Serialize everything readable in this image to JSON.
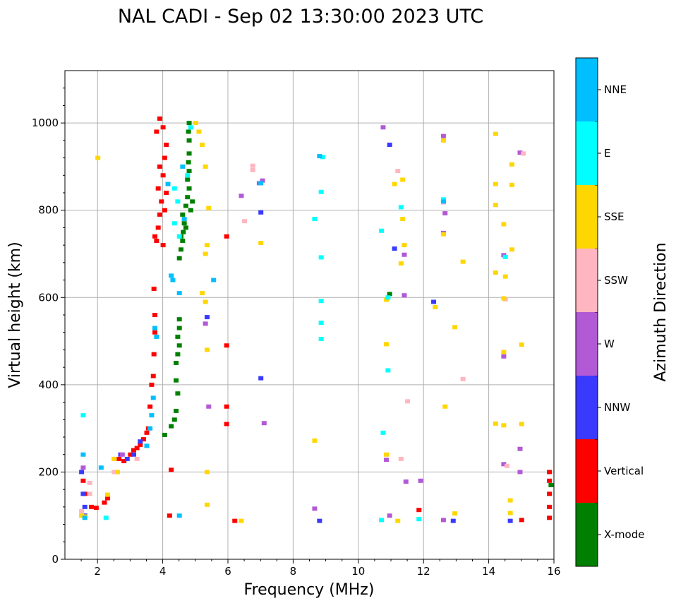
{
  "chart_data": {
    "type": "scatter",
    "title": "NAL CADI - Sep 02 13:30:00 2023 UTC",
    "xlabel": "Frequency (MHz)",
    "ylabel": "Virtual height (km)",
    "xlim": [
      1,
      16
    ],
    "ylim": [
      0,
      1120
    ],
    "xticks": [
      2,
      4,
      6,
      8,
      10,
      12,
      14,
      16
    ],
    "yticks": [
      0,
      200,
      400,
      600,
      800,
      1000
    ],
    "grid": true,
    "colorbar": {
      "label": "Azimuth Direction",
      "categories": [
        {
          "name": "X-mode",
          "color": "#008000"
        },
        {
          "name": "Vertical",
          "color": "#ff0000"
        },
        {
          "name": "NNW",
          "color": "#3a3aff"
        },
        {
          "name": "W",
          "color": "#b259d6"
        },
        {
          "name": "SSW",
          "color": "#ffb6c1"
        },
        {
          "name": "SSE",
          "color": "#ffd700"
        },
        {
          "name": "E",
          "color": "#00ffff"
        },
        {
          "name": "NNE",
          "color": "#00bfff"
        }
      ]
    },
    "series": [
      {
        "name": "X-mode",
        "color": "#008000",
        "points": [
          [
            4.05,
            285
          ],
          [
            4.25,
            305
          ],
          [
            4.35,
            320
          ],
          [
            4.4,
            340
          ],
          [
            4.45,
            380
          ],
          [
            4.4,
            410
          ],
          [
            4.4,
            450
          ],
          [
            4.45,
            470
          ],
          [
            4.5,
            490
          ],
          [
            4.45,
            510
          ],
          [
            4.5,
            530
          ],
          [
            4.5,
            550
          ],
          [
            4.5,
            690
          ],
          [
            4.55,
            710
          ],
          [
            4.6,
            730
          ],
          [
            4.62,
            750
          ],
          [
            4.65,
            770
          ],
          [
            4.6,
            790
          ],
          [
            4.7,
            810
          ],
          [
            4.75,
            830
          ],
          [
            4.8,
            850
          ],
          [
            4.75,
            870
          ],
          [
            4.8,
            890
          ],
          [
            4.78,
            910
          ],
          [
            4.8,
            930
          ],
          [
            4.8,
            960
          ],
          [
            4.78,
            980
          ],
          [
            4.8,
            1000
          ],
          [
            4.7,
            760
          ],
          [
            4.55,
            740
          ],
          [
            4.85,
            800
          ],
          [
            4.9,
            820
          ],
          [
            10.95,
            608
          ],
          [
            15.9,
            170
          ]
        ]
      },
      {
        "name": "Vertical",
        "color": "#ff0000",
        "points": [
          [
            1.55,
            180
          ],
          [
            1.6,
            150
          ],
          [
            1.8,
            120
          ],
          [
            1.95,
            118
          ],
          [
            2.2,
            130
          ],
          [
            2.3,
            140
          ],
          [
            2.65,
            230
          ],
          [
            2.8,
            225
          ],
          [
            3.0,
            240
          ],
          [
            3.1,
            250
          ],
          [
            3.2,
            255
          ],
          [
            3.3,
            262
          ],
          [
            3.4,
            275
          ],
          [
            3.5,
            290
          ],
          [
            3.55,
            300
          ],
          [
            3.6,
            350
          ],
          [
            3.65,
            400
          ],
          [
            3.7,
            420
          ],
          [
            3.72,
            470
          ],
          [
            3.75,
            520
          ],
          [
            3.75,
            560
          ],
          [
            3.72,
            620
          ],
          [
            3.8,
            730
          ],
          [
            3.85,
            760
          ],
          [
            3.9,
            790
          ],
          [
            3.95,
            820
          ],
          [
            3.85,
            850
          ],
          [
            4.0,
            880
          ],
          [
            3.9,
            900
          ],
          [
            4.05,
            920
          ],
          [
            4.1,
            950
          ],
          [
            3.8,
            980
          ],
          [
            4.0,
            990
          ],
          [
            3.9,
            1010
          ],
          [
            4.1,
            840
          ],
          [
            4.05,
            800
          ],
          [
            4.2,
            100
          ],
          [
            4.25,
            205
          ],
          [
            3.75,
            740
          ],
          [
            4.0,
            720
          ],
          [
            5.95,
            740
          ],
          [
            5.95,
            490
          ],
          [
            5.95,
            350
          ],
          [
            5.95,
            310
          ],
          [
            6.2,
            88
          ],
          [
            11.85,
            113
          ],
          [
            15.0,
            90
          ],
          [
            15.85,
            150
          ],
          [
            15.85,
            120
          ],
          [
            15.85,
            180
          ],
          [
            15.85,
            200
          ],
          [
            15.85,
            95
          ]
        ]
      },
      {
        "name": "NNW",
        "color": "#3a3aff",
        "points": [
          [
            1.5,
            200
          ],
          [
            1.55,
            150
          ],
          [
            1.6,
            120
          ],
          [
            1.6,
            100
          ],
          [
            2.7,
            240
          ],
          [
            2.9,
            230
          ],
          [
            3.1,
            240
          ],
          [
            3.3,
            270
          ],
          [
            5.35,
            555
          ],
          [
            7.0,
            795
          ],
          [
            7.0,
            415
          ],
          [
            8.8,
            88
          ],
          [
            11.1,
            712
          ],
          [
            12.3,
            590
          ],
          [
            12.9,
            88
          ],
          [
            14.65,
            88
          ],
          [
            10.95,
            950
          ]
        ]
      },
      {
        "name": "W",
        "color": "#b259d6",
        "points": [
          [
            1.55,
            210
          ],
          [
            2.75,
            240
          ],
          [
            5.4,
            350
          ],
          [
            5.3,
            540
          ],
          [
            6.4,
            833
          ],
          [
            6.95,
            862
          ],
          [
            7.05,
            868
          ],
          [
            7.1,
            312
          ],
          [
            8.65,
            116
          ],
          [
            10.75,
            990
          ],
          [
            10.85,
            228
          ],
          [
            10.95,
            100
          ],
          [
            11.4,
            605
          ],
          [
            11.4,
            698
          ],
          [
            11.45,
            178
          ],
          [
            11.9,
            180
          ],
          [
            12.6,
            970
          ],
          [
            12.65,
            793
          ],
          [
            12.6,
            748
          ],
          [
            12.6,
            90
          ],
          [
            14.45,
            697
          ],
          [
            14.45,
            465
          ],
          [
            14.45,
            218
          ],
          [
            14.95,
            932
          ],
          [
            14.95,
            253
          ],
          [
            14.95,
            200
          ]
        ]
      },
      {
        "name": "SSW",
        "color": "#ffb6c1",
        "points": [
          [
            1.5,
            110
          ],
          [
            1.75,
            150
          ],
          [
            1.75,
            175
          ],
          [
            2.5,
            200
          ],
          [
            2.5,
            230
          ],
          [
            3.2,
            230
          ],
          [
            6.5,
            775
          ],
          [
            6.75,
            902
          ],
          [
            6.75,
            892
          ],
          [
            11.2,
            890
          ],
          [
            11.3,
            230
          ],
          [
            11.5,
            362
          ],
          [
            12.6,
            818
          ],
          [
            13.2,
            413
          ],
          [
            14.5,
            596
          ],
          [
            14.55,
            214
          ],
          [
            15.05,
            930
          ]
        ]
      },
      {
        "name": "SSE",
        "color": "#ffd700",
        "points": [
          [
            1.5,
            100
          ],
          [
            1.6,
            98
          ],
          [
            2.0,
            920
          ],
          [
            2.3,
            148
          ],
          [
            2.5,
            230
          ],
          [
            2.6,
            200
          ],
          [
            5.0,
            1000
          ],
          [
            5.1,
            980
          ],
          [
            5.2,
            950
          ],
          [
            5.3,
            900
          ],
          [
            5.4,
            805
          ],
          [
            5.35,
            720
          ],
          [
            5.3,
            700
          ],
          [
            5.2,
            610
          ],
          [
            5.3,
            590
          ],
          [
            5.35,
            480
          ],
          [
            5.35,
            200
          ],
          [
            5.35,
            125
          ],
          [
            6.4,
            88
          ],
          [
            7.0,
            725
          ],
          [
            8.65,
            272
          ],
          [
            10.85,
            595
          ],
          [
            10.85,
            493
          ],
          [
            10.85,
            240
          ],
          [
            11.1,
            860
          ],
          [
            11.2,
            88
          ],
          [
            11.35,
            870
          ],
          [
            11.35,
            780
          ],
          [
            11.3,
            678
          ],
          [
            11.4,
            720
          ],
          [
            12.35,
            578
          ],
          [
            12.6,
            960
          ],
          [
            12.6,
            745
          ],
          [
            12.65,
            350
          ],
          [
            12.95,
            532
          ],
          [
            13.2,
            682
          ],
          [
            12.95,
            105
          ],
          [
            14.2,
            975
          ],
          [
            14.2,
            860
          ],
          [
            14.2,
            812
          ],
          [
            14.2,
            657
          ],
          [
            14.2,
            311
          ],
          [
            14.45,
            768
          ],
          [
            14.5,
            648
          ],
          [
            14.45,
            598
          ],
          [
            14.45,
            475
          ],
          [
            14.45,
            307
          ],
          [
            14.7,
            905
          ],
          [
            14.7,
            858
          ],
          [
            14.7,
            710
          ],
          [
            14.65,
            135
          ],
          [
            14.65,
            106
          ],
          [
            15.0,
            492
          ],
          [
            15.0,
            310
          ]
        ]
      },
      {
        "name": "E",
        "color": "#00ffff",
        "points": [
          [
            1.55,
            330
          ],
          [
            2.25,
            95
          ],
          [
            4.35,
            850
          ],
          [
            4.45,
            820
          ],
          [
            4.35,
            770
          ],
          [
            4.5,
            740
          ],
          [
            4.85,
            990
          ],
          [
            4.75,
            880
          ],
          [
            8.9,
            922
          ],
          [
            8.85,
            842
          ],
          [
            8.85,
            692
          ],
          [
            8.85,
            592
          ],
          [
            8.85,
            542
          ],
          [
            8.85,
            505
          ],
          [
            8.65,
            780
          ],
          [
            10.7,
            753
          ],
          [
            10.75,
            290
          ],
          [
            10.7,
            90
          ],
          [
            10.9,
            600
          ],
          [
            10.9,
            433
          ],
          [
            11.3,
            807
          ],
          [
            12.6,
            825
          ],
          [
            14.5,
            693
          ],
          [
            11.85,
            92
          ]
        ]
      },
      {
        "name": "NNE",
        "color": "#00bfff",
        "points": [
          [
            1.55,
            240
          ],
          [
            1.6,
            95
          ],
          [
            2.1,
            210
          ],
          [
            3.5,
            260
          ],
          [
            3.6,
            300
          ],
          [
            3.65,
            330
          ],
          [
            3.7,
            370
          ],
          [
            3.75,
            530
          ],
          [
            3.8,
            510
          ],
          [
            4.15,
            860
          ],
          [
            4.25,
            650
          ],
          [
            4.3,
            640
          ],
          [
            4.5,
            100
          ],
          [
            4.6,
            900
          ],
          [
            4.5,
            610
          ],
          [
            4.65,
            780
          ],
          [
            5.55,
            640
          ],
          [
            7.0,
            862
          ],
          [
            8.8,
            924
          ],
          [
            12.6,
            820
          ]
        ]
      }
    ]
  }
}
